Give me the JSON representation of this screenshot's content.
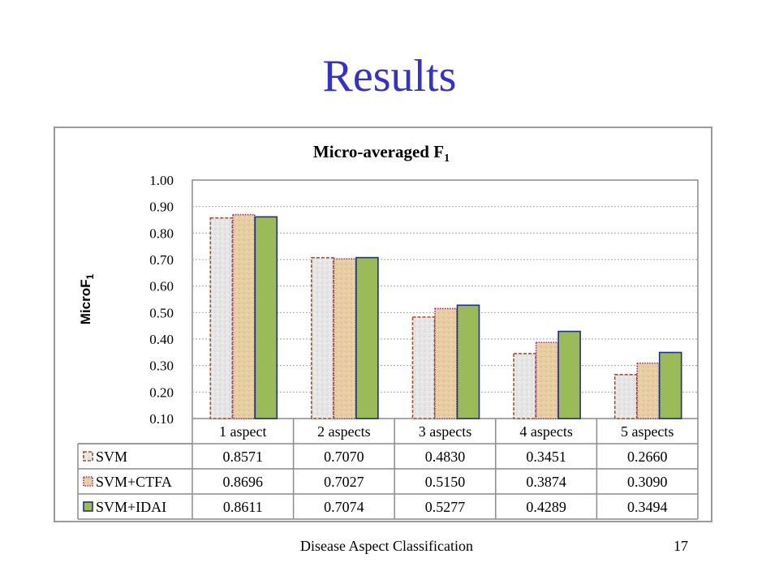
{
  "slide": {
    "title": "Results",
    "footer_text": "Disease Aspect Classification",
    "page_number": "17"
  },
  "colors": {
    "title": "#3333cc",
    "svm_border": "#a0522d",
    "ctfa_border": "#9b2d7a",
    "idai_fill": "#9bbb59",
    "idai_border": "#1f2f8f"
  },
  "chart_data": {
    "type": "bar",
    "title": "Micro-averaged F",
    "title_subscript": "1",
    "ylabel": "MicroF",
    "ylabel_subscript": "1",
    "xlabel": "",
    "ylim": [
      0.1,
      1.0
    ],
    "yticks": [
      "1.00",
      "0.90",
      "0.80",
      "0.70",
      "0.60",
      "0.50",
      "0.40",
      "0.30",
      "0.20",
      "0.10"
    ],
    "grid": true,
    "legend_placement": "data-table",
    "categories": [
      "1 aspect",
      "2 aspects",
      "3 aspects",
      "4 aspects",
      "5 aspects"
    ],
    "series": [
      {
        "name": "SVM",
        "values": [
          0.8571,
          0.707,
          0.483,
          0.3451,
          0.266
        ],
        "labels": [
          "0.8571",
          "0.7070",
          "0.4830",
          "0.3451",
          "0.2660"
        ]
      },
      {
        "name": "SVM+CTFA",
        "values": [
          0.8696,
          0.7027,
          0.515,
          0.3874,
          0.309
        ],
        "labels": [
          "0.8696",
          "0.7027",
          "0.5150",
          "0.3874",
          "0.3090"
        ]
      },
      {
        "name": "SVM+IDAI",
        "values": [
          0.8611,
          0.7074,
          0.5277,
          0.4289,
          0.3494
        ],
        "labels": [
          "0.8611",
          "0.7074",
          "0.5277",
          "0.4289",
          "0.3494"
        ]
      }
    ]
  }
}
